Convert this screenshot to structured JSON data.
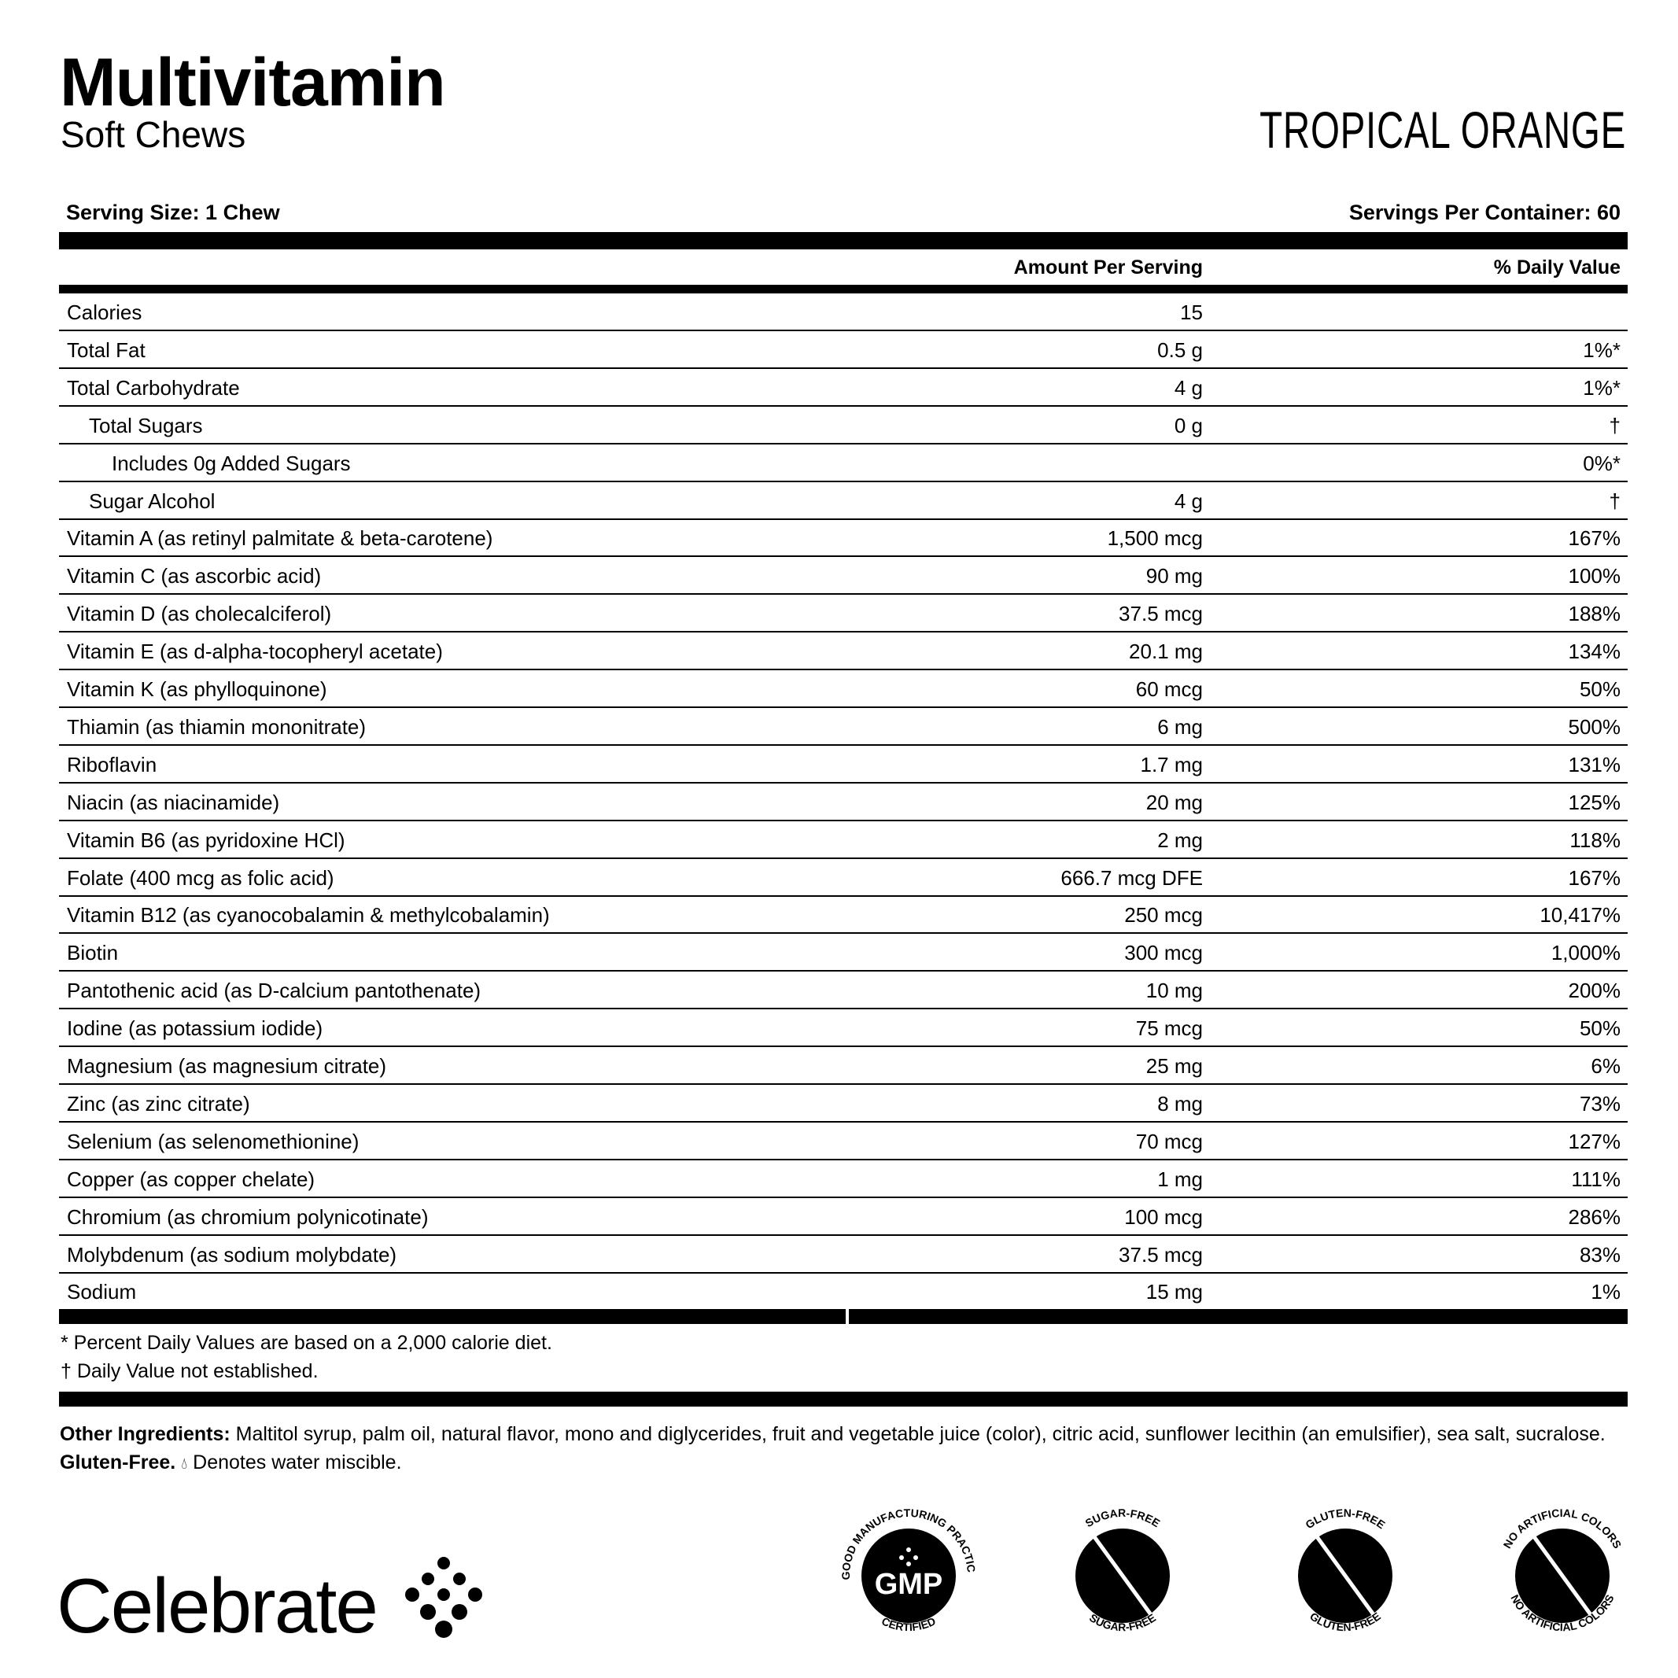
{
  "header": {
    "title": "Multivitamin",
    "subtitle": "Soft Chews",
    "flavor": "TROPICAL ORANGE"
  },
  "serving": {
    "size": "Serving Size: 1 Chew",
    "per_container": "Servings Per Container: 60"
  },
  "columns": {
    "amount": "Amount Per Serving",
    "dv": "% Daily Value"
  },
  "rows": [
    {
      "name": "Calories",
      "amount": "15",
      "dv": ""
    },
    {
      "name": "Total Fat",
      "amount": "0.5 g",
      "dv": "1%*"
    },
    {
      "name": "Total Carbohydrate",
      "amount": "4 g",
      "dv": "1%*"
    },
    {
      "name": "Total Sugars",
      "amount": "0 g",
      "dv": "†",
      "indent": 1
    },
    {
      "name": "Includes 0g Added Sugars",
      "amount": "",
      "dv": "0%*",
      "indent": 2
    },
    {
      "name": "Sugar Alcohol",
      "amount": "4 g",
      "dv": "†",
      "indent": 1
    },
    {
      "name": "Vitamin A (as retinyl palmitate & beta-carotene)",
      "amount": "1,500 mcg",
      "dv": "167%"
    },
    {
      "name": "Vitamin C (as ascorbic acid)",
      "amount": "90 mg",
      "dv": "100%"
    },
    {
      "name": "Vitamin D (as cholecalciferol)",
      "amount": "37.5 mcg",
      "dv": "188%"
    },
    {
      "name": "Vitamin E (as d-alpha-tocopheryl acetate)",
      "amount": "20.1 mg",
      "dv": "134%"
    },
    {
      "name": "Vitamin K (as phylloquinone)",
      "amount": "60 mcg",
      "dv": "50%"
    },
    {
      "name": "Thiamin (as thiamin mononitrate)",
      "amount": "6 mg",
      "dv": "500%"
    },
    {
      "name": "Riboflavin",
      "amount": "1.7 mg",
      "dv": "131%"
    },
    {
      "name": "Niacin (as niacinamide)",
      "amount": "20 mg",
      "dv": "125%"
    },
    {
      "name": "Vitamin B6 (as pyridoxine HCl)",
      "amount": "2 mg",
      "dv": "118%"
    },
    {
      "name": "Folate (400 mcg as folic acid)",
      "amount": "666.7 mcg DFE",
      "dv": "167%"
    },
    {
      "name": "Vitamin B12 (as cyanocobalamin & methylcobalamin)",
      "amount": "250 mcg",
      "dv": "10,417%"
    },
    {
      "name": "Biotin",
      "amount": "300 mcg",
      "dv": "1,000%"
    },
    {
      "name": "Pantothenic acid (as D-calcium pantothenate)",
      "amount": "10 mg",
      "dv": "200%"
    },
    {
      "name": "Iodine (as potassium iodide)",
      "amount": "75 mcg",
      "dv": "50%"
    },
    {
      "name": "Magnesium (as magnesium citrate)",
      "amount": "25 mg",
      "dv": "6%"
    },
    {
      "name": "Zinc (as zinc citrate)",
      "amount": "8 mg",
      "dv": "73%"
    },
    {
      "name": "Selenium (as selenomethionine)",
      "amount": "70 mcg",
      "dv": "127%"
    },
    {
      "name": "Copper (as copper chelate)",
      "amount": "1 mg",
      "dv": "111%"
    },
    {
      "name": "Chromium (as chromium polynicotinate)",
      "amount": "100 mcg",
      "dv": "286%"
    },
    {
      "name": "Molybdenum (as sodium molybdate)",
      "amount": "37.5 mcg",
      "dv": "83%"
    },
    {
      "name": "Sodium",
      "amount": "15 mg",
      "dv": "1%"
    }
  ],
  "footnotes": [
    "* Percent Daily Values are based on a 2,000 calorie diet.",
    "† Daily Value not established."
  ],
  "ingredients": {
    "label": "Other Ingredients:",
    "text": " Maltitol syrup, palm oil, natural flavor, mono and diglycerides, fruit and vegetable juice (color), citric acid, sunflower lecithin (an emulsifier), sea salt, sucralose. ",
    "gluten": "Gluten-Free.",
    "water_icon": "droplet-icon",
    "water": " Denotes water miscible."
  },
  "brand": "Celebrate",
  "badges": [
    {
      "icon": "gmp-icon",
      "center": "GMP",
      "top": "GOOD MANUFACTURING PRACTICE",
      "bottom": "CERTIFIED"
    },
    {
      "icon": "sugar-cube-crossed-icon",
      "top": "SUGAR-FREE",
      "left": "SUGAR-FREE",
      "right": "SUGAR-FREE"
    },
    {
      "icon": "wheat-crossed-icon",
      "top": "GLUTEN-FREE",
      "left": "GLUTEN-FREE",
      "right": "GLUTEN-FREE"
    },
    {
      "icon": "dropper-crossed-icon",
      "top": "NO ARTIFICIAL COLORS",
      "bottom": "NO ARTIFICIAL COLORS"
    }
  ]
}
